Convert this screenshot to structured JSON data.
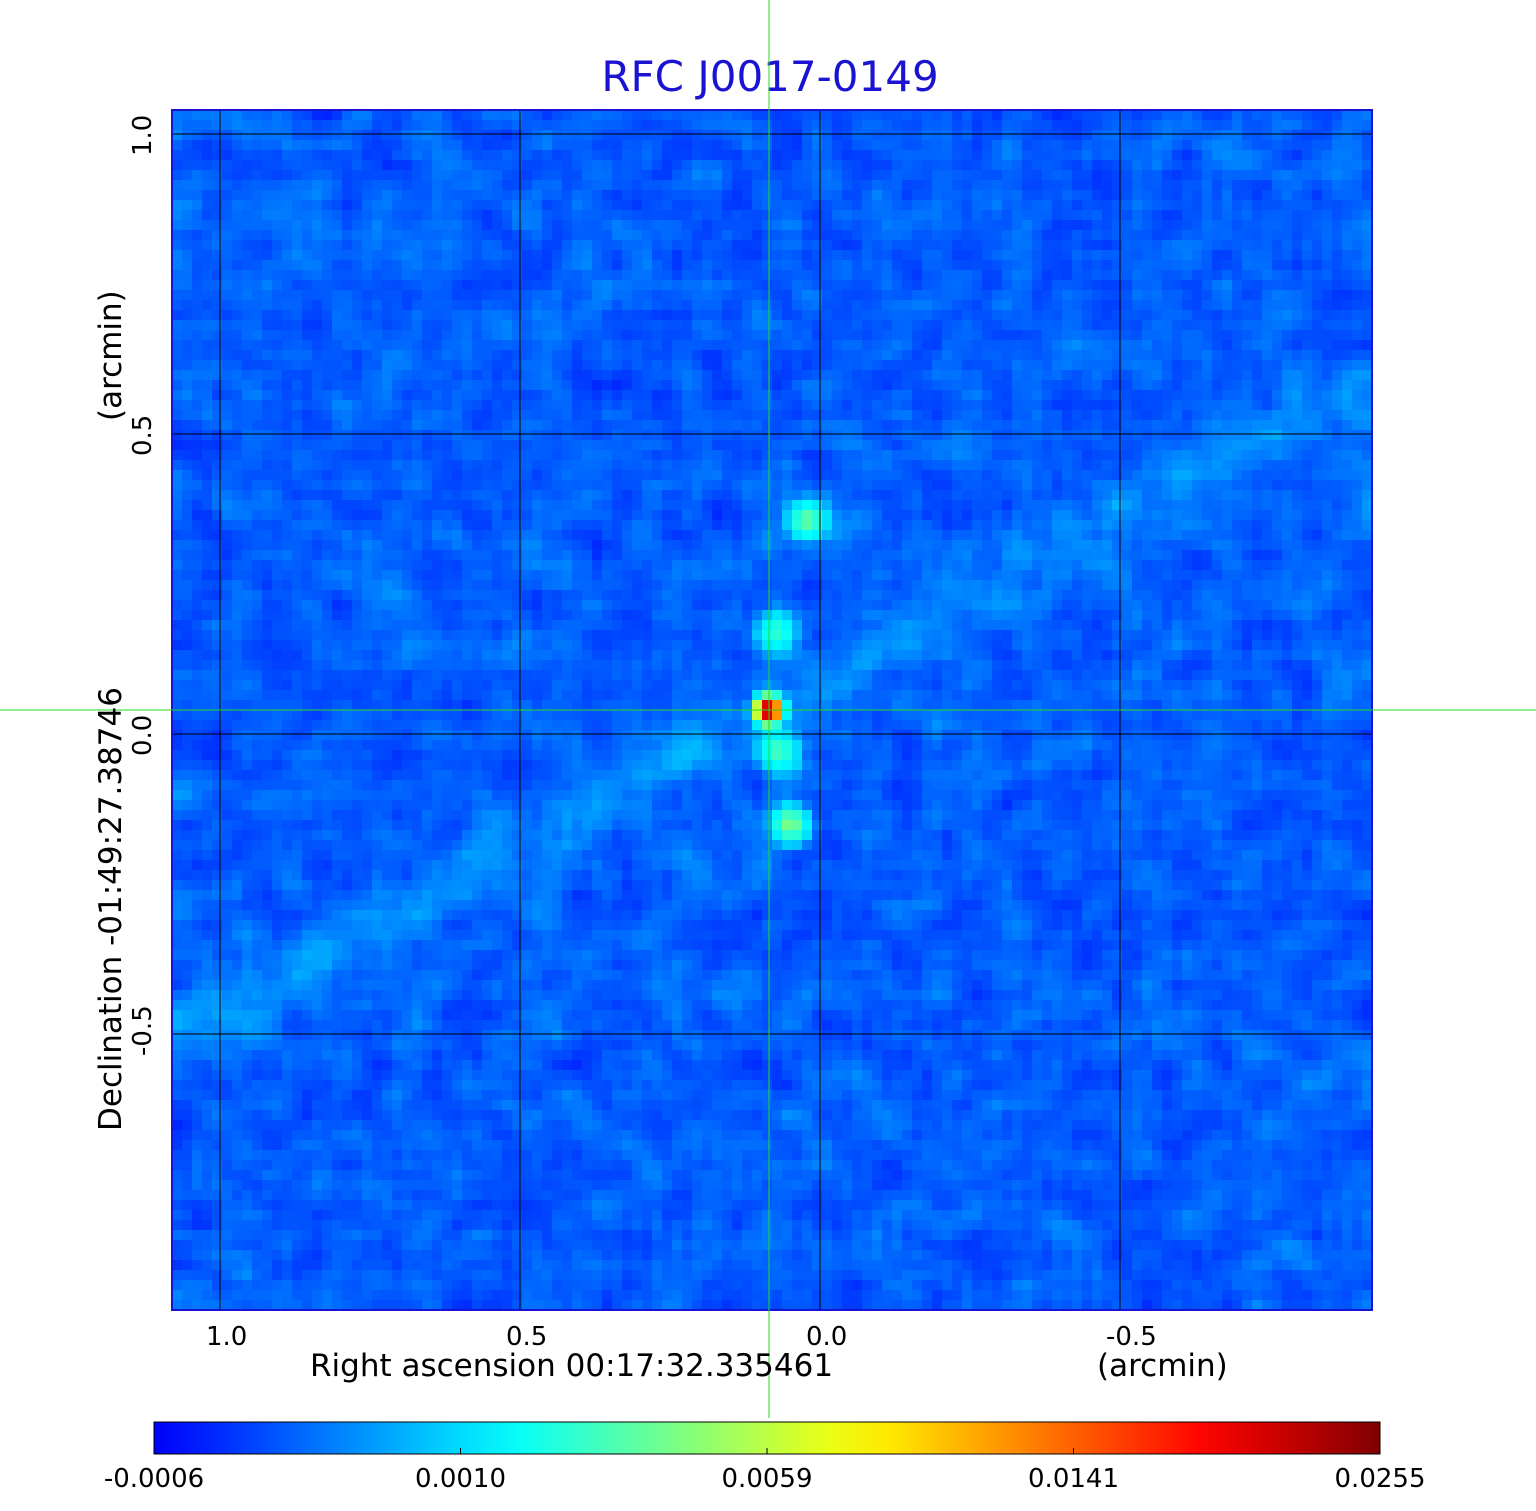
{
  "chart_data": {
    "type": "heatmap",
    "title": "RFC J0017-0149",
    "xlabel": "Right ascension  00:17:32.335461",
    "xunit": "(arcmin)",
    "ylabel": "Declination  -01:49:27.38746",
    "yunit": "(arcmin)",
    "x_ticks": [
      "1.0",
      "0.5",
      "0.0",
      "-0.5"
    ],
    "y_ticks": [
      "1.0",
      "0.5",
      "0.0",
      "-0.5"
    ],
    "xlim": [
      1.08,
      -0.92
    ],
    "ylim": [
      -0.96,
      1.04
    ],
    "x_reversed": true,
    "grid": true,
    "crosshair": {
      "x": 0.085,
      "y": 0.04,
      "color": "#22dd22"
    },
    "colormap": "jet",
    "colorbar_ticks": [
      "-0.0006",
      "0.0010",
      "0.0059",
      "0.0141",
      "0.0255"
    ],
    "value_range": [
      -0.0006,
      0.0255
    ],
    "peak": {
      "x": 0.085,
      "y": 0.04,
      "value": 0.0255
    },
    "features": [
      {
        "x": 0.085,
        "y": 0.04,
        "value": 0.0255
      },
      {
        "x": 0.02,
        "y": 0.355,
        "value": 0.0035
      },
      {
        "x": 0.07,
        "y": 0.17,
        "value": 0.0025
      },
      {
        "x": 0.05,
        "y": -0.15,
        "value": 0.0045
      },
      {
        "x": 0.07,
        "y": -0.03,
        "value": 0.003
      }
    ]
  },
  "colors": {
    "title": "#1a14d2",
    "grid": "#000000",
    "crosshair": "#22dd22"
  }
}
